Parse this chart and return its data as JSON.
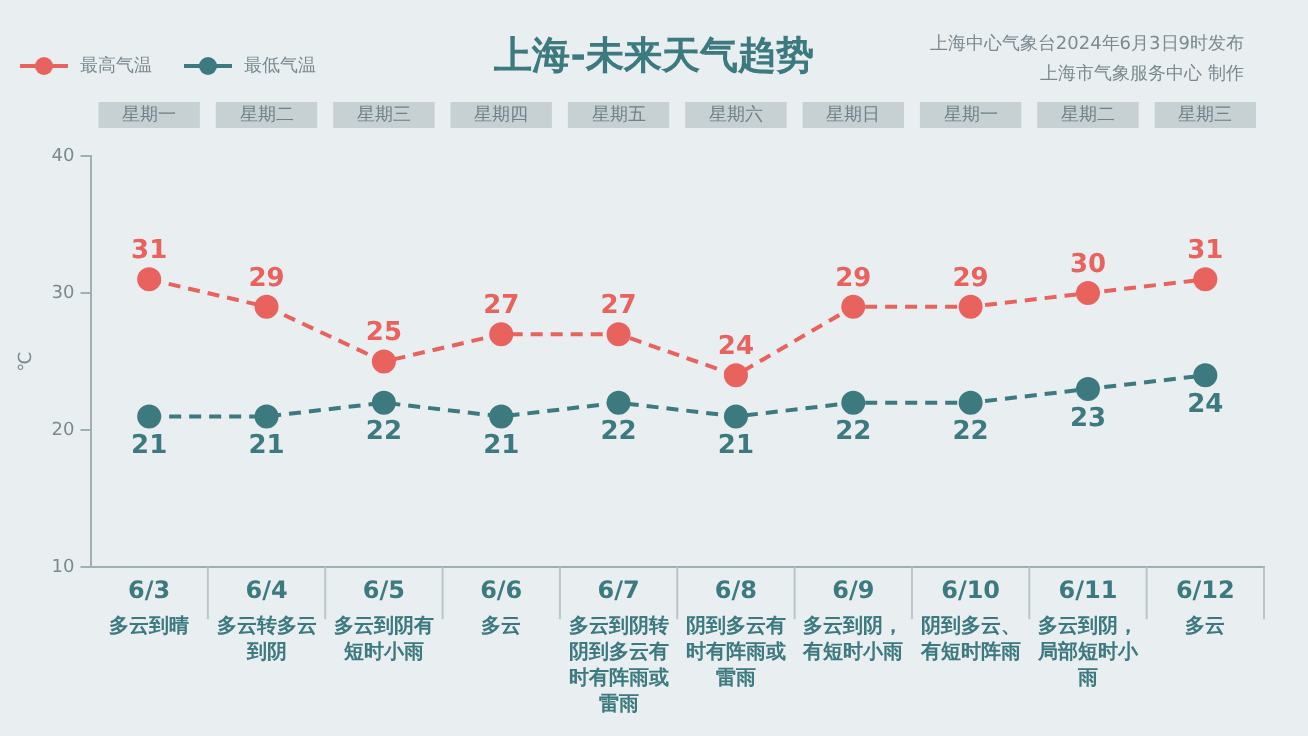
{
  "chart_data": {
    "type": "line",
    "title": "上海-未来天气趋势",
    "annotations": [
      "星期一",
      "星期二",
      "星期三",
      "星期四",
      "星期五",
      "星期六",
      "星期日",
      "星期一",
      "星期二",
      "星期三",
      "多云到晴",
      "多云转多云到阴",
      "多云到阴有短时小雨",
      "多云",
      "多云到阴转阴到多云有时有阵雨或雷雨",
      "阴到多云有时有阵雨或雷雨",
      "多云到阴，有短时小雨",
      "阴到多云、有短时阵雨",
      "多云到阴，局部短时小雨",
      "多云",
      "上海中心气象台2024年6月3日9时发布",
      "上海市气象服务中心 制作"
    ],
    "ylabel": "℃",
    "categories": [
      "6/3",
      "6/4",
      "6/5",
      "6/6",
      "6/7",
      "6/8",
      "6/9",
      "6/10",
      "6/11",
      "6/12"
    ],
    "series": [
      {
        "name": "最高气温",
        "color": "#e8625e",
        "values": [
          31,
          29,
          25,
          27,
          27,
          24,
          29,
          29,
          30,
          31
        ]
      },
      {
        "name": "最低气温",
        "color": "#3d7a80",
        "values": [
          21,
          21,
          22,
          21,
          22,
          21,
          22,
          22,
          23,
          24
        ]
      }
    ],
    "ylim": [
      10,
      40
    ],
    "yticks": [
      10,
      20,
      30,
      40
    ],
    "grid": false,
    "legend": "top left",
    "marker": "circle",
    "line_style": "dashed",
    "data_labels": true
  }
}
